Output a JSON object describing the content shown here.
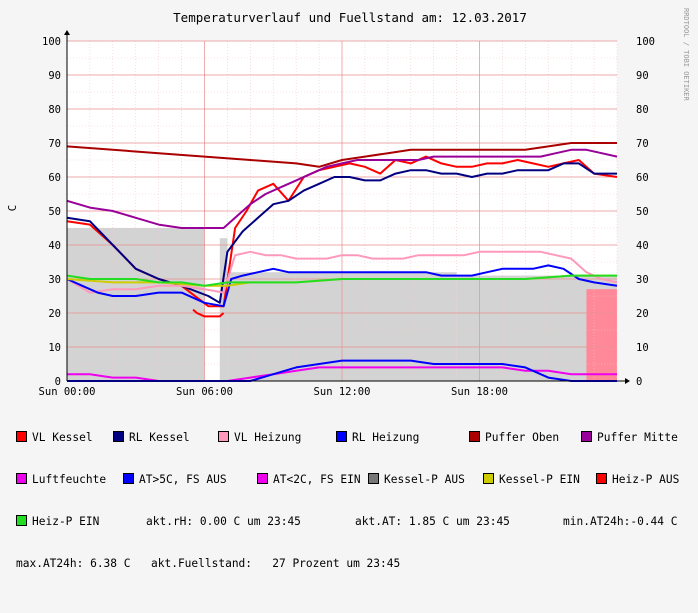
{
  "chart_data": {
    "type": "line",
    "title": "Temperaturverlauf und Fuellstand am: 12.03.2017",
    "side_label": "RRDTOOL / TOBI OETIKER",
    "ylabel": "C",
    "xlabel": "",
    "ylim": [
      0,
      100
    ],
    "yticks": [
      "0",
      "10",
      "20",
      "30",
      "40",
      "50",
      "60",
      "70",
      "80",
      "90",
      "100"
    ],
    "xlim": [
      0,
      1440
    ],
    "xticks": [
      {
        "x": 0,
        "label": "Sun 00:00"
      },
      {
        "x": 360,
        "label": "Sun 06:00"
      },
      {
        "x": 720,
        "label": "Sun 12:00"
      },
      {
        "x": 1080,
        "label": "Sun 18:00"
      }
    ],
    "grid": true,
    "legend_position": "bottom",
    "series": [
      {
        "name": "VL Kessel",
        "color": "#ff0000",
        "points": [
          [
            0,
            47
          ],
          [
            60,
            46
          ],
          [
            120,
            40
          ],
          [
            180,
            33
          ],
          [
            240,
            30
          ],
          [
            300,
            28
          ],
          [
            370,
            22
          ],
          [
            410,
            22
          ],
          [
            440,
            45
          ],
          [
            470,
            50
          ],
          [
            500,
            56
          ],
          [
            540,
            58
          ],
          [
            580,
            53
          ],
          [
            620,
            60
          ],
          [
            660,
            62
          ],
          [
            700,
            63
          ],
          [
            740,
            64
          ],
          [
            780,
            63
          ],
          [
            820,
            61
          ],
          [
            860,
            65
          ],
          [
            900,
            64
          ],
          [
            940,
            66
          ],
          [
            980,
            64
          ],
          [
            1020,
            63
          ],
          [
            1060,
            63
          ],
          [
            1100,
            64
          ],
          [
            1140,
            64
          ],
          [
            1180,
            65
          ],
          [
            1220,
            64
          ],
          [
            1260,
            63
          ],
          [
            1300,
            64
          ],
          [
            1340,
            65
          ],
          [
            1380,
            61
          ],
          [
            1440,
            60
          ]
        ]
      },
      {
        "name": "RL Kessel",
        "color": "#000080",
        "points": [
          [
            0,
            48
          ],
          [
            60,
            47
          ],
          [
            120,
            40
          ],
          [
            180,
            33
          ],
          [
            240,
            30
          ],
          [
            300,
            28
          ],
          [
            370,
            25
          ],
          [
            400,
            23
          ],
          [
            420,
            38
          ],
          [
            460,
            44
          ],
          [
            500,
            48
          ],
          [
            540,
            52
          ],
          [
            580,
            53
          ],
          [
            620,
            56
          ],
          [
            660,
            58
          ],
          [
            700,
            60
          ],
          [
            740,
            60
          ],
          [
            780,
            59
          ],
          [
            820,
            59
          ],
          [
            860,
            61
          ],
          [
            900,
            62
          ],
          [
            940,
            62
          ],
          [
            980,
            61
          ],
          [
            1020,
            61
          ],
          [
            1060,
            60
          ],
          [
            1100,
            61
          ],
          [
            1140,
            61
          ],
          [
            1180,
            62
          ],
          [
            1220,
            62
          ],
          [
            1260,
            62
          ],
          [
            1300,
            64
          ],
          [
            1340,
            64
          ],
          [
            1380,
            61
          ],
          [
            1440,
            61
          ]
        ]
      },
      {
        "name": "VL Heizung",
        "color": "#ff99bb",
        "points": [
          [
            0,
            30
          ],
          [
            60,
            26
          ],
          [
            120,
            27
          ],
          [
            180,
            27
          ],
          [
            240,
            28
          ],
          [
            300,
            28
          ],
          [
            360,
            27
          ],
          [
            410,
            26
          ],
          [
            440,
            37
          ],
          [
            480,
            38
          ],
          [
            520,
            37
          ],
          [
            560,
            37
          ],
          [
            600,
            36
          ],
          [
            640,
            36
          ],
          [
            680,
            36
          ],
          [
            720,
            37
          ],
          [
            760,
            37
          ],
          [
            800,
            36
          ],
          [
            840,
            36
          ],
          [
            880,
            36
          ],
          [
            920,
            37
          ],
          [
            960,
            37
          ],
          [
            1000,
            37
          ],
          [
            1040,
            37
          ],
          [
            1080,
            38
          ],
          [
            1120,
            38
          ],
          [
            1160,
            38
          ],
          [
            1200,
            38
          ],
          [
            1240,
            38
          ],
          [
            1280,
            37
          ],
          [
            1320,
            36
          ],
          [
            1360,
            32
          ],
          [
            1400,
            30
          ],
          [
            1440,
            29
          ]
        ]
      },
      {
        "name": "RL Heizung",
        "color": "#0000ff",
        "points": [
          [
            0,
            30
          ],
          [
            40,
            28
          ],
          [
            80,
            26
          ],
          [
            120,
            25
          ],
          [
            180,
            25
          ],
          [
            240,
            26
          ],
          [
            300,
            26
          ],
          [
            360,
            23
          ],
          [
            410,
            22
          ],
          [
            430,
            30
          ],
          [
            460,
            31
          ],
          [
            500,
            32
          ],
          [
            540,
            33
          ],
          [
            580,
            32
          ],
          [
            620,
            32
          ],
          [
            660,
            32
          ],
          [
            700,
            32
          ],
          [
            740,
            32
          ],
          [
            780,
            32
          ],
          [
            820,
            32
          ],
          [
            860,
            32
          ],
          [
            900,
            32
          ],
          [
            940,
            32
          ],
          [
            980,
            31
          ],
          [
            1020,
            31
          ],
          [
            1060,
            31
          ],
          [
            1100,
            32
          ],
          [
            1140,
            33
          ],
          [
            1180,
            33
          ],
          [
            1220,
            33
          ],
          [
            1260,
            34
          ],
          [
            1300,
            33
          ],
          [
            1340,
            30
          ],
          [
            1380,
            29
          ],
          [
            1440,
            28
          ]
        ]
      },
      {
        "name": "Puffer Oben",
        "color": "#aa0000",
        "points": [
          [
            0,
            69
          ],
          [
            120,
            68
          ],
          [
            240,
            67
          ],
          [
            360,
            66
          ],
          [
            480,
            65
          ],
          [
            600,
            64
          ],
          [
            660,
            63
          ],
          [
            720,
            65
          ],
          [
            780,
            66
          ],
          [
            840,
            67
          ],
          [
            900,
            68
          ],
          [
            960,
            68
          ],
          [
            1020,
            68
          ],
          [
            1080,
            68
          ],
          [
            1140,
            68
          ],
          [
            1200,
            68
          ],
          [
            1260,
            69
          ],
          [
            1320,
            70
          ],
          [
            1380,
            70
          ],
          [
            1440,
            70
          ]
        ]
      },
      {
        "name": "Puffer Mitte",
        "color": "#990099",
        "points": [
          [
            0,
            53
          ],
          [
            60,
            51
          ],
          [
            120,
            50
          ],
          [
            180,
            48
          ],
          [
            240,
            46
          ],
          [
            300,
            45
          ],
          [
            360,
            45
          ],
          [
            410,
            45
          ],
          [
            440,
            48
          ],
          [
            480,
            52
          ],
          [
            520,
            55
          ],
          [
            560,
            57
          ],
          [
            600,
            59
          ],
          [
            640,
            61
          ],
          [
            680,
            63
          ],
          [
            720,
            64
          ],
          [
            760,
            65
          ],
          [
            800,
            65
          ],
          [
            840,
            65
          ],
          [
            880,
            65
          ],
          [
            920,
            65
          ],
          [
            960,
            66
          ],
          [
            1000,
            66
          ],
          [
            1040,
            66
          ],
          [
            1080,
            66
          ],
          [
            1120,
            66
          ],
          [
            1160,
            66
          ],
          [
            1200,
            66
          ],
          [
            1240,
            66
          ],
          [
            1280,
            67
          ],
          [
            1320,
            68
          ],
          [
            1360,
            68
          ],
          [
            1400,
            67
          ],
          [
            1440,
            66
          ]
        ]
      },
      {
        "name": "Luftfeuchte",
        "color": "#ee00ee",
        "points": [
          [
            0,
            2
          ],
          [
            60,
            2
          ],
          [
            120,
            1
          ],
          [
            180,
            1
          ],
          [
            240,
            0
          ],
          [
            300,
            0
          ],
          [
            360,
            0
          ],
          [
            420,
            0
          ],
          [
            480,
            1
          ],
          [
            540,
            2
          ],
          [
            600,
            3
          ],
          [
            660,
            4
          ],
          [
            720,
            4
          ],
          [
            780,
            4
          ],
          [
            840,
            4
          ],
          [
            900,
            4
          ],
          [
            960,
            4
          ],
          [
            1020,
            4
          ],
          [
            1080,
            4
          ],
          [
            1140,
            4
          ],
          [
            1200,
            3
          ],
          [
            1260,
            3
          ],
          [
            1320,
            2
          ],
          [
            1380,
            2
          ],
          [
            1440,
            2
          ]
        ]
      },
      {
        "name": "AT>5C, FS AUS",
        "color": "#0000ff",
        "points": [
          [
            0,
            0
          ],
          [
            120,
            0
          ],
          [
            240,
            0
          ],
          [
            360,
            0
          ],
          [
            480,
            0
          ],
          [
            540,
            2
          ],
          [
            600,
            4
          ],
          [
            660,
            5
          ],
          [
            720,
            6
          ],
          [
            780,
            6
          ],
          [
            840,
            6
          ],
          [
            900,
            6
          ],
          [
            960,
            5
          ],
          [
            1020,
            5
          ],
          [
            1080,
            5
          ],
          [
            1140,
            5
          ],
          [
            1200,
            4
          ],
          [
            1260,
            1
          ],
          [
            1320,
            0
          ],
          [
            1440,
            0
          ]
        ]
      },
      {
        "name": "AT<2C, FS EIN",
        "color": "#ee00ee",
        "points": []
      },
      {
        "name": "Kessel-P AUS",
        "color": "#777777",
        "points": []
      },
      {
        "name": "Kessel-P EIN",
        "color": "#cccc00",
        "points": [
          [
            0,
            30
          ],
          [
            120,
            29
          ],
          [
            240,
            29
          ],
          [
            360,
            28
          ],
          [
            420,
            28
          ],
          [
            480,
            29
          ],
          [
            600,
            29
          ],
          [
            720,
            30
          ],
          [
            840,
            30
          ],
          [
            960,
            30
          ],
          [
            1080,
            30
          ],
          [
            1200,
            30
          ],
          [
            1320,
            31
          ],
          [
            1440,
            31
          ]
        ]
      },
      {
        "name": "Heiz-P AUS",
        "color": "#ff0000",
        "points": [
          [
            330,
            21
          ],
          [
            340,
            20
          ],
          [
            360,
            19
          ],
          [
            380,
            19
          ],
          [
            400,
            19
          ],
          [
            410,
            20
          ]
        ]
      },
      {
        "name": "Heiz-P EIN",
        "color": "#22dd22",
        "points": [
          [
            0,
            31
          ],
          [
            60,
            30
          ],
          [
            120,
            30
          ],
          [
            180,
            30
          ],
          [
            240,
            29
          ],
          [
            300,
            29
          ],
          [
            360,
            28
          ],
          [
            420,
            29
          ],
          [
            480,
            29
          ],
          [
            600,
            29
          ],
          [
            720,
            30
          ],
          [
            840,
            30
          ],
          [
            960,
            30
          ],
          [
            1080,
            30
          ],
          [
            1200,
            30
          ],
          [
            1320,
            31
          ],
          [
            1440,
            31
          ]
        ]
      }
    ],
    "areas": [
      {
        "name": "Fuellstand",
        "color": "#d3d3d3",
        "segments": [
          [
            0,
            360,
            45
          ],
          [
            400,
            420,
            42
          ],
          [
            420,
            1020,
            32
          ],
          [
            1020,
            1440,
            31
          ]
        ]
      },
      {
        "name": "Heiz-P AUS fill",
        "color": "#ff8899",
        "segments": [
          [
            1360,
            1440,
            27
          ]
        ]
      }
    ],
    "info": {
      "rh": "akt.rH: 0.00 C um 23:45",
      "at": "akt.AT: 1.85 C um 23:45",
      "min": "min.AT24h:-0.44 C",
      "max": "max.AT24h: 6.38 C",
      "fuell": "akt.Fuellstand:   27 Prozent um 23:45"
    }
  }
}
